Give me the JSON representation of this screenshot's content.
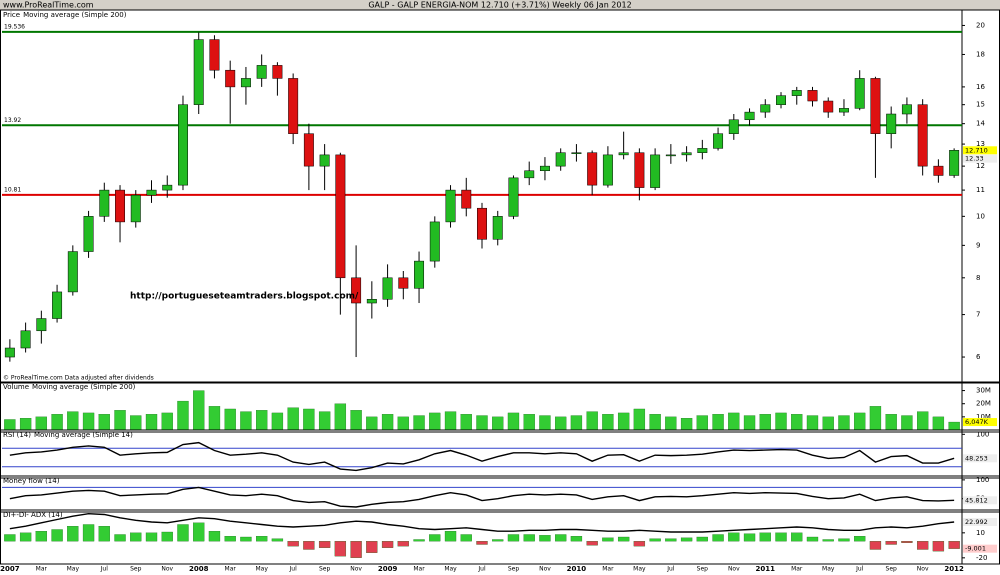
{
  "header": {
    "left": "www.ProRealTime.com",
    "title": "GALP - GALP ENERGIA-NOM    12.710 (+3.71%)    Weekly 06 Jan 2012"
  },
  "chart_data": [
    {
      "type": "candlestick",
      "title": "Price",
      "subtitle": "Moving average (Simple 200)",
      "log": true,
      "ylim": [
        5.5,
        21
      ],
      "yticks": [
        6,
        7,
        8,
        9,
        10,
        11,
        12,
        13,
        14,
        15,
        16,
        18,
        20
      ],
      "up_color": "#22bb22",
      "down_color": "#dd1111",
      "open": [
        6.0,
        6.2,
        6.6,
        6.9,
        7.6,
        8.8,
        10.0,
        11.0,
        9.8,
        10.8,
        11.0,
        11.2,
        15.0,
        19.0,
        17.0,
        16.0,
        16.5,
        17.3,
        16.5,
        13.5,
        12.0,
        12.5,
        8.0,
        7.3,
        7.4,
        8.0,
        7.7,
        8.5,
        9.8,
        11.0,
        10.3,
        9.2,
        10.0,
        11.5,
        11.8,
        12.0,
        12.6,
        12.6,
        11.2,
        12.5,
        12.6,
        11.1,
        12.5,
        12.5,
        12.6,
        12.8,
        13.5,
        14.2,
        14.6,
        15.0,
        15.5,
        15.8,
        15.2,
        14.6,
        14.8,
        16.5,
        13.5,
        14.5,
        15.0,
        12.0,
        11.6
      ],
      "high": [
        6.4,
        6.8,
        7.1,
        7.8,
        9.0,
        10.2,
        11.3,
        11.2,
        11.0,
        11.4,
        11.6,
        15.5,
        19.5,
        19.3,
        17.6,
        17.2,
        18.0,
        17.5,
        16.8,
        14.0,
        13.0,
        12.6,
        9.0,
        7.9,
        8.4,
        8.2,
        8.8,
        10.0,
        11.2,
        11.5,
        10.5,
        10.2,
        11.6,
        12.2,
        12.4,
        12.8,
        13.0,
        12.7,
        12.9,
        13.6,
        12.8,
        12.8,
        13.0,
        12.9,
        13.2,
        13.8,
        14.5,
        14.8,
        15.3,
        15.7,
        16.0,
        16.0,
        15.4,
        15.3,
        17.0,
        16.6,
        14.9,
        15.4,
        15.3,
        12.3,
        12.8
      ],
      "low": [
        5.9,
        6.1,
        6.3,
        6.8,
        7.5,
        8.6,
        9.8,
        9.1,
        9.6,
        10.5,
        10.7,
        11.0,
        14.5,
        16.5,
        14.0,
        15.0,
        16.0,
        15.5,
        13.0,
        11.0,
        11.0,
        7.0,
        6.0,
        6.9,
        7.2,
        7.4,
        7.3,
        8.3,
        9.6,
        10.0,
        8.9,
        9.0,
        9.9,
        11.2,
        11.4,
        11.8,
        12.2,
        10.8,
        11.1,
        12.3,
        10.6,
        11.0,
        12.1,
        12.2,
        12.3,
        12.7,
        13.2,
        13.9,
        14.3,
        14.8,
        15.0,
        14.9,
        14.3,
        14.4,
        14.7,
        11.5,
        12.8,
        14.0,
        11.6,
        11.3,
        11.5
      ],
      "close": [
        6.2,
        6.6,
        6.9,
        7.6,
        8.8,
        10.0,
        11.0,
        9.8,
        10.8,
        11.0,
        11.2,
        15.0,
        19.0,
        17.0,
        16.0,
        16.5,
        17.3,
        16.5,
        13.5,
        12.0,
        12.5,
        8.0,
        7.3,
        7.4,
        8.0,
        7.7,
        8.5,
        9.8,
        11.0,
        10.3,
        9.2,
        10.0,
        11.5,
        11.8,
        12.0,
        12.6,
        12.6,
        11.2,
        12.5,
        12.6,
        11.1,
        12.5,
        12.5,
        12.6,
        12.8,
        13.5,
        14.2,
        14.6,
        15.0,
        15.5,
        15.8,
        15.2,
        14.6,
        14.8,
        16.5,
        13.5,
        14.5,
        15.0,
        12.0,
        11.6,
        12.71
      ],
      "levels": [
        {
          "value": 19.536,
          "label": "19.536",
          "color": "#007700"
        },
        {
          "value": 13.92,
          "label": "13.92",
          "color": "#007700"
        },
        {
          "value": 10.81,
          "label": "10.81",
          "color": "#dd0000"
        }
      ],
      "last_labels": [
        {
          "value": 12.71,
          "label": "12.710",
          "color": "#ffff00"
        },
        {
          "value": 12.33,
          "label": "12.33",
          "color": "#eeeeee"
        }
      ],
      "annotation": "http://portugueseteamtraders.blogspot.com/",
      "footnote": "© ProRealTime.com  Data adjusted after dividends"
    },
    {
      "type": "bar",
      "title": "Volume",
      "subtitle": "Moving average (Simple 200)",
      "ylim": [
        0,
        35
      ],
      "yticks": [
        {
          "value": 10,
          "label": "10M"
        },
        {
          "value": 20,
          "label": "20M"
        },
        {
          "value": 30,
          "label": "30M"
        }
      ],
      "color": "#33cc33",
      "values": [
        8,
        9,
        10,
        12,
        14,
        13,
        12,
        15,
        11,
        12,
        13,
        22,
        30,
        18,
        16,
        14,
        15,
        13,
        17,
        16,
        14,
        20,
        15,
        10,
        12,
        10,
        11,
        13,
        14,
        12,
        11,
        10,
        13,
        12,
        11,
        10,
        11,
        14,
        12,
        13,
        16,
        12,
        10,
        9,
        11,
        12,
        13,
        11,
        12,
        13,
        12,
        11,
        10,
        11,
        13,
        18,
        12,
        11,
        14,
        10,
        6.047
      ],
      "last_labels": [
        {
          "value": 6.047,
          "label": "6,047K",
          "color": "#ffff00"
        }
      ]
    },
    {
      "type": "line",
      "title": "RSI (14)",
      "subtitle": "Moving average (Simple 14)",
      "ylim": [
        10,
        105
      ],
      "yticks": [
        100
      ],
      "color": "#000000",
      "levels": [
        70,
        30
      ],
      "values": [
        55,
        60,
        62,
        66,
        72,
        75,
        72,
        55,
        58,
        60,
        61,
        78,
        82,
        65,
        55,
        57,
        60,
        55,
        40,
        35,
        40,
        25,
        22,
        28,
        38,
        36,
        45,
        58,
        65,
        55,
        42,
        52,
        60,
        60,
        58,
        60,
        58,
        42,
        55,
        56,
        42,
        55,
        54,
        55,
        57,
        62,
        66,
        65,
        66,
        67,
        66,
        55,
        48,
        50,
        65,
        40,
        52,
        54,
        38,
        38,
        48.253
      ],
      "last_labels": [
        {
          "value": 48.253,
          "label": "48.253",
          "color": "#eeeeee"
        }
      ]
    },
    {
      "type": "line",
      "title": "Money flow (14)",
      "ylim": [
        20,
        105
      ],
      "yticks": [
        100,
        50
      ],
      "color": "#000000",
      "levels": [
        80
      ],
      "values": [
        50,
        58,
        60,
        65,
        70,
        72,
        70,
        58,
        60,
        62,
        63,
        75,
        80,
        70,
        60,
        58,
        62,
        58,
        45,
        40,
        42,
        30,
        28,
        35,
        40,
        42,
        48,
        58,
        66,
        60,
        45,
        50,
        58,
        62,
        60,
        62,
        60,
        48,
        55,
        58,
        45,
        55,
        56,
        55,
        58,
        62,
        66,
        64,
        66,
        65,
        64,
        56,
        50,
        52,
        62,
        45,
        52,
        55,
        45,
        44,
        45.812
      ],
      "last_labels": [
        {
          "value": 45.812,
          "label": "45.812",
          "color": "#eeeeee"
        }
      ]
    },
    {
      "type": "combo",
      "title": "DI+-DI- ADX (14)",
      "ylim": [
        -25,
        35
      ],
      "yticks": [
        -20,
        10
      ],
      "categories": [
        "2007",
        null,
        "Mar",
        null,
        "May",
        null,
        "Jul",
        null,
        "Sep",
        null,
        "Nov",
        null,
        "2008",
        null,
        "Mar",
        null,
        "May",
        null,
        "Jul",
        null,
        "Sep",
        null,
        "Nov",
        null,
        "2009",
        null,
        "Mar",
        null,
        "May",
        null,
        "Jul",
        null,
        "Sep",
        null,
        "Nov",
        null,
        "2010",
        null,
        "Mar",
        null,
        "May",
        null,
        "Jul",
        null,
        "Sep",
        null,
        "Nov",
        null,
        "2011",
        null,
        "Mar",
        null,
        "May",
        null,
        "Jul",
        null,
        "Sep",
        null,
        "Nov",
        null,
        "2012"
      ],
      "series": [
        {
          "type": "bar",
          "color": "#33cc33",
          "neg_color": "#e04050",
          "values": [
            8,
            10,
            12,
            14,
            18,
            20,
            18,
            8,
            10,
            10,
            11,
            20,
            22,
            12,
            6,
            5,
            6,
            3,
            -6,
            -10,
            -8,
            -18,
            -20,
            -14,
            -8,
            -6,
            2,
            8,
            12,
            8,
            -4,
            2,
            8,
            8,
            7,
            8,
            6,
            -5,
            4,
            5,
            -6,
            3,
            3,
            4,
            5,
            8,
            10,
            9,
            10,
            10,
            10,
            5,
            2,
            3,
            6,
            -10,
            -4,
            -2,
            -10,
            -12,
            -9.001
          ]
        },
        {
          "type": "line",
          "color": "#000000",
          "values": [
            15,
            18,
            22,
            26,
            30,
            33,
            32,
            28,
            25,
            23,
            22,
            25,
            28,
            27,
            24,
            22,
            20,
            18,
            17,
            18,
            19,
            22,
            24,
            23,
            20,
            18,
            15,
            14,
            15,
            16,
            14,
            12,
            12,
            13,
            13,
            14,
            14,
            13,
            12,
            12,
            13,
            12,
            11,
            11,
            11,
            12,
            13,
            14,
            15,
            16,
            17,
            16,
            14,
            13,
            13,
            16,
            17,
            16,
            18,
            21,
            22.992
          ]
        }
      ],
      "last_labels": [
        {
          "value": 22.992,
          "label": "22.992",
          "color": "#eeeeee"
        },
        {
          "value": -9.001,
          "label": "-9.001",
          "color": "#ffcccc"
        }
      ]
    }
  ]
}
